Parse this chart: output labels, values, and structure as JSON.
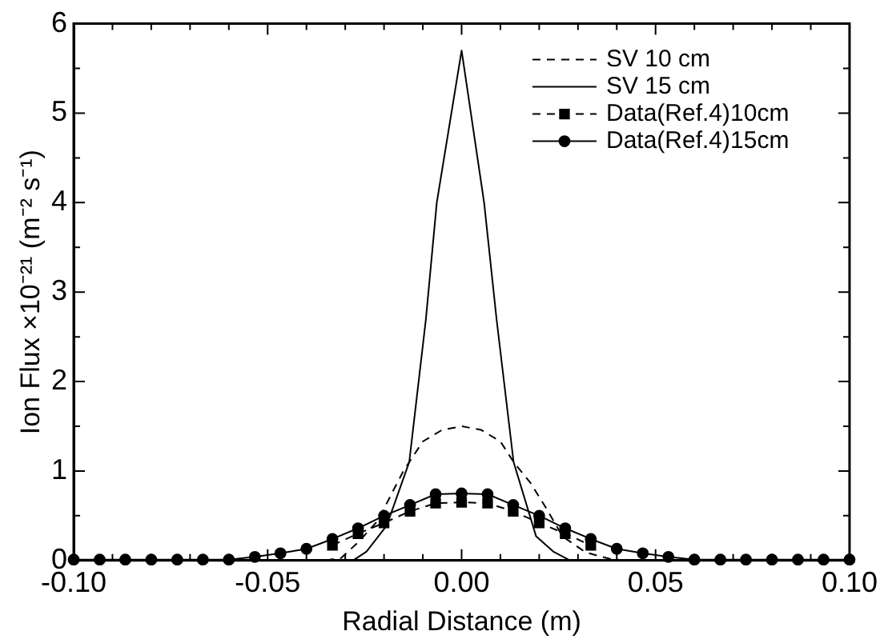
{
  "chart_data": {
    "type": "line",
    "xlabel": "Radial Distance (m)",
    "ylabel": "Ion Flux ×10⁻²¹ (m⁻² s⁻¹)",
    "xlim": [
      -0.1,
      0.1
    ],
    "ylim": [
      0,
      6
    ],
    "xticks": [
      {
        "value": -0.1,
        "label": "-0.10"
      },
      {
        "value": -0.09,
        "label": null
      },
      {
        "value": -0.08,
        "label": null
      },
      {
        "value": -0.07,
        "label": null
      },
      {
        "value": -0.06,
        "label": null
      },
      {
        "value": -0.05,
        "label": "-0.05"
      },
      {
        "value": -0.04,
        "label": null
      },
      {
        "value": -0.03,
        "label": null
      },
      {
        "value": -0.02,
        "label": null
      },
      {
        "value": -0.01,
        "label": null
      },
      {
        "value": 0,
        "label": "0.00"
      },
      {
        "value": 0.01,
        "label": null
      },
      {
        "value": 0.02,
        "label": null
      },
      {
        "value": 0.03,
        "label": null
      },
      {
        "value": 0.04,
        "label": null
      },
      {
        "value": 0.05,
        "label": "0.05"
      },
      {
        "value": 0.06,
        "label": null
      },
      {
        "value": 0.07,
        "label": null
      },
      {
        "value": 0.08,
        "label": null
      },
      {
        "value": 0.09,
        "label": null
      },
      {
        "value": 0.1,
        "label": "0.10"
      }
    ],
    "yticks": [
      0,
      {
        "value": 0.5,
        "label": null
      },
      1,
      {
        "value": 1.5,
        "label": null
      },
      2,
      {
        "value": 2.5,
        "label": null
      },
      3,
      {
        "value": 3.5,
        "label": null
      },
      4,
      {
        "value": 4.5,
        "label": null
      },
      5,
      {
        "value": 5.5,
        "label": null
      },
      6
    ],
    "grid": false,
    "legend": "top right",
    "series": [
      {
        "name": "SV 10 cm",
        "color": "#000000",
        "line_style": "dashed",
        "marker": "none",
        "x": [
          -0.035,
          -0.031,
          -0.0265,
          -0.0215,
          -0.018,
          -0.015,
          -0.01,
          -0.005,
          0,
          0.005,
          0.01,
          0.0134,
          0.0177,
          0.022,
          0.026,
          0.032,
          0.038,
          0.042
        ],
        "values": [
          0,
          0.03,
          0.21,
          0.45,
          0.75,
          1.0,
          1.33,
          1.46,
          1.5,
          1.46,
          1.33,
          1.1,
          0.87,
          0.57,
          0.27,
          0.09,
          0.02,
          0
        ]
      },
      {
        "name": "SV 15 cm",
        "color": "#000000",
        "line_style": "solid",
        "marker": "none",
        "x": [
          -0.028,
          -0.0245,
          -0.0193,
          -0.0135,
          -0.0092,
          -0.0064,
          0,
          0.0058,
          0.009,
          0.0134,
          0.0192,
          0.0236,
          0.028
        ],
        "values": [
          0,
          0.1,
          0.39,
          1.1,
          2.7,
          4.0,
          5.7,
          4.0,
          2.7,
          1.1,
          0.27,
          0.1,
          0
        ]
      },
      {
        "name": "Data(Ref.4)10cm",
        "color": "#000000",
        "line_style": "dashed",
        "marker": "square",
        "x": [
          -0.0333,
          -0.0267,
          -0.02,
          -0.0133,
          -0.0067,
          0,
          0.0067,
          0.0133,
          0.02,
          0.0267,
          0.0333
        ],
        "values": [
          0.17,
          0.3,
          0.42,
          0.55,
          0.64,
          0.65,
          0.64,
          0.55,
          0.42,
          0.3,
          0.17
        ]
      },
      {
        "name": "Data(Ref.4)15cm",
        "color": "#000000",
        "line_style": "solid",
        "marker": "circle",
        "x": [
          -0.1,
          -0.0933,
          -0.0867,
          -0.08,
          -0.0733,
          -0.0667,
          -0.06,
          -0.0533,
          -0.0467,
          -0.04,
          -0.0333,
          -0.0267,
          -0.02,
          -0.0133,
          -0.0067,
          0,
          0.0067,
          0.0133,
          0.02,
          0.0267,
          0.0333,
          0.04,
          0.0467,
          0.0533,
          0.06,
          0.0667,
          0.0733,
          0.08,
          0.0867,
          0.0933,
          0.1
        ],
        "values": [
          0.01,
          0.01,
          0.01,
          0.01,
          0.01,
          0.01,
          0.01,
          0.04,
          0.08,
          0.13,
          0.24,
          0.36,
          0.5,
          0.62,
          0.74,
          0.75,
          0.74,
          0.62,
          0.5,
          0.36,
          0.24,
          0.13,
          0.08,
          0.04,
          0.01,
          0.01,
          0.01,
          0.01,
          0.01,
          0.01,
          0.01
        ]
      }
    ]
  }
}
